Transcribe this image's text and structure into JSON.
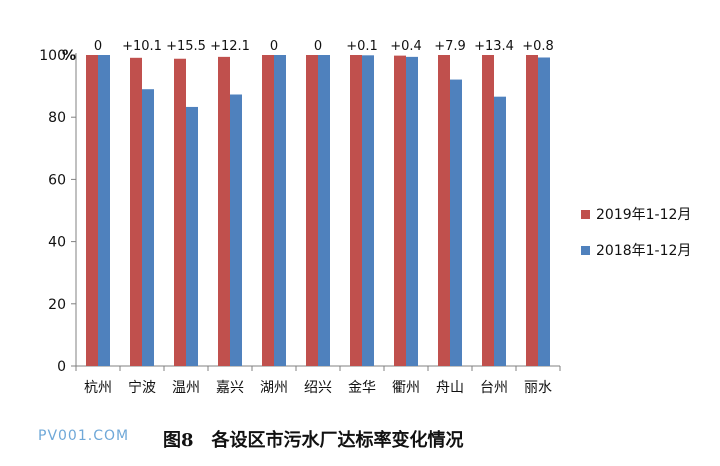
{
  "chart_data": {
    "type": "bar",
    "ylabel": "%",
    "ylim": [
      0,
      100
    ],
    "yticks": [
      0,
      20,
      40,
      60,
      80,
      100
    ],
    "categories": [
      "杭州",
      "宁波",
      "温州",
      "嘉兴",
      "湖州",
      "绍兴",
      "金华",
      "衢州",
      "舟山",
      "台州",
      "丽水"
    ],
    "series": [
      {
        "name": "2019年1-12月",
        "color": "#c0504d",
        "values": [
          100,
          99.1,
          98.8,
          99.4,
          100,
          100,
          100,
          99.8,
          100,
          100,
          100
        ]
      },
      {
        "name": "2018年1-12月",
        "color": "#4f81bd",
        "values": [
          100,
          89,
          83.3,
          87.3,
          100,
          100,
          99.9,
          99.4,
          92.1,
          86.6,
          99.2
        ]
      }
    ],
    "annotations": [
      "0",
      "+10.1",
      "+15.5",
      "+12.1",
      "0",
      "0",
      "+0.1",
      "+0.4",
      "+7.9",
      "+13.4",
      "+0.8"
    ],
    "grid": false,
    "legend_position": "right"
  },
  "caption": "图8　各设区市污水厂达标率变化情况",
  "watermark": "PV001.COM"
}
